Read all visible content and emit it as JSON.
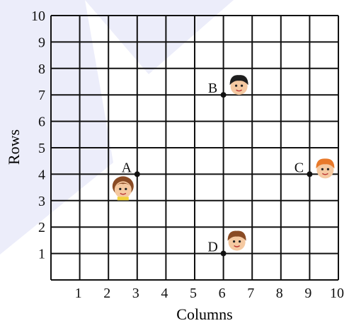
{
  "axes": {
    "x_label": "Columns",
    "y_label": "Rows",
    "x_min": 0,
    "x_max": 10,
    "y_min": 0,
    "y_max": 10,
    "x_ticks": [
      "1",
      "2",
      "3",
      "4",
      "5",
      "6",
      "7",
      "8",
      "9",
      "10"
    ],
    "y_ticks": [
      "1",
      "2",
      "3",
      "4",
      "5",
      "6",
      "7",
      "8",
      "9",
      "10"
    ]
  },
  "points": [
    {
      "label": "A",
      "x": 3,
      "y": 4,
      "figure": "girl-face-icon"
    },
    {
      "label": "B",
      "x": 6,
      "y": 7,
      "figure": "boy-face-icon"
    },
    {
      "label": "C",
      "x": 9,
      "y": 4,
      "figure": "boy-face-icon"
    },
    {
      "label": "D",
      "x": 6,
      "y": 1,
      "figure": "boy-face-icon"
    }
  ],
  "colors": {
    "grid": "#111111",
    "text": "#111111",
    "watermark": "#c9ccf0",
    "skin": "#f5c9a1",
    "hair_dark": "#1f1f1f",
    "hair_brown": "#8a4b24",
    "hair_orange": "#e8792a"
  }
}
